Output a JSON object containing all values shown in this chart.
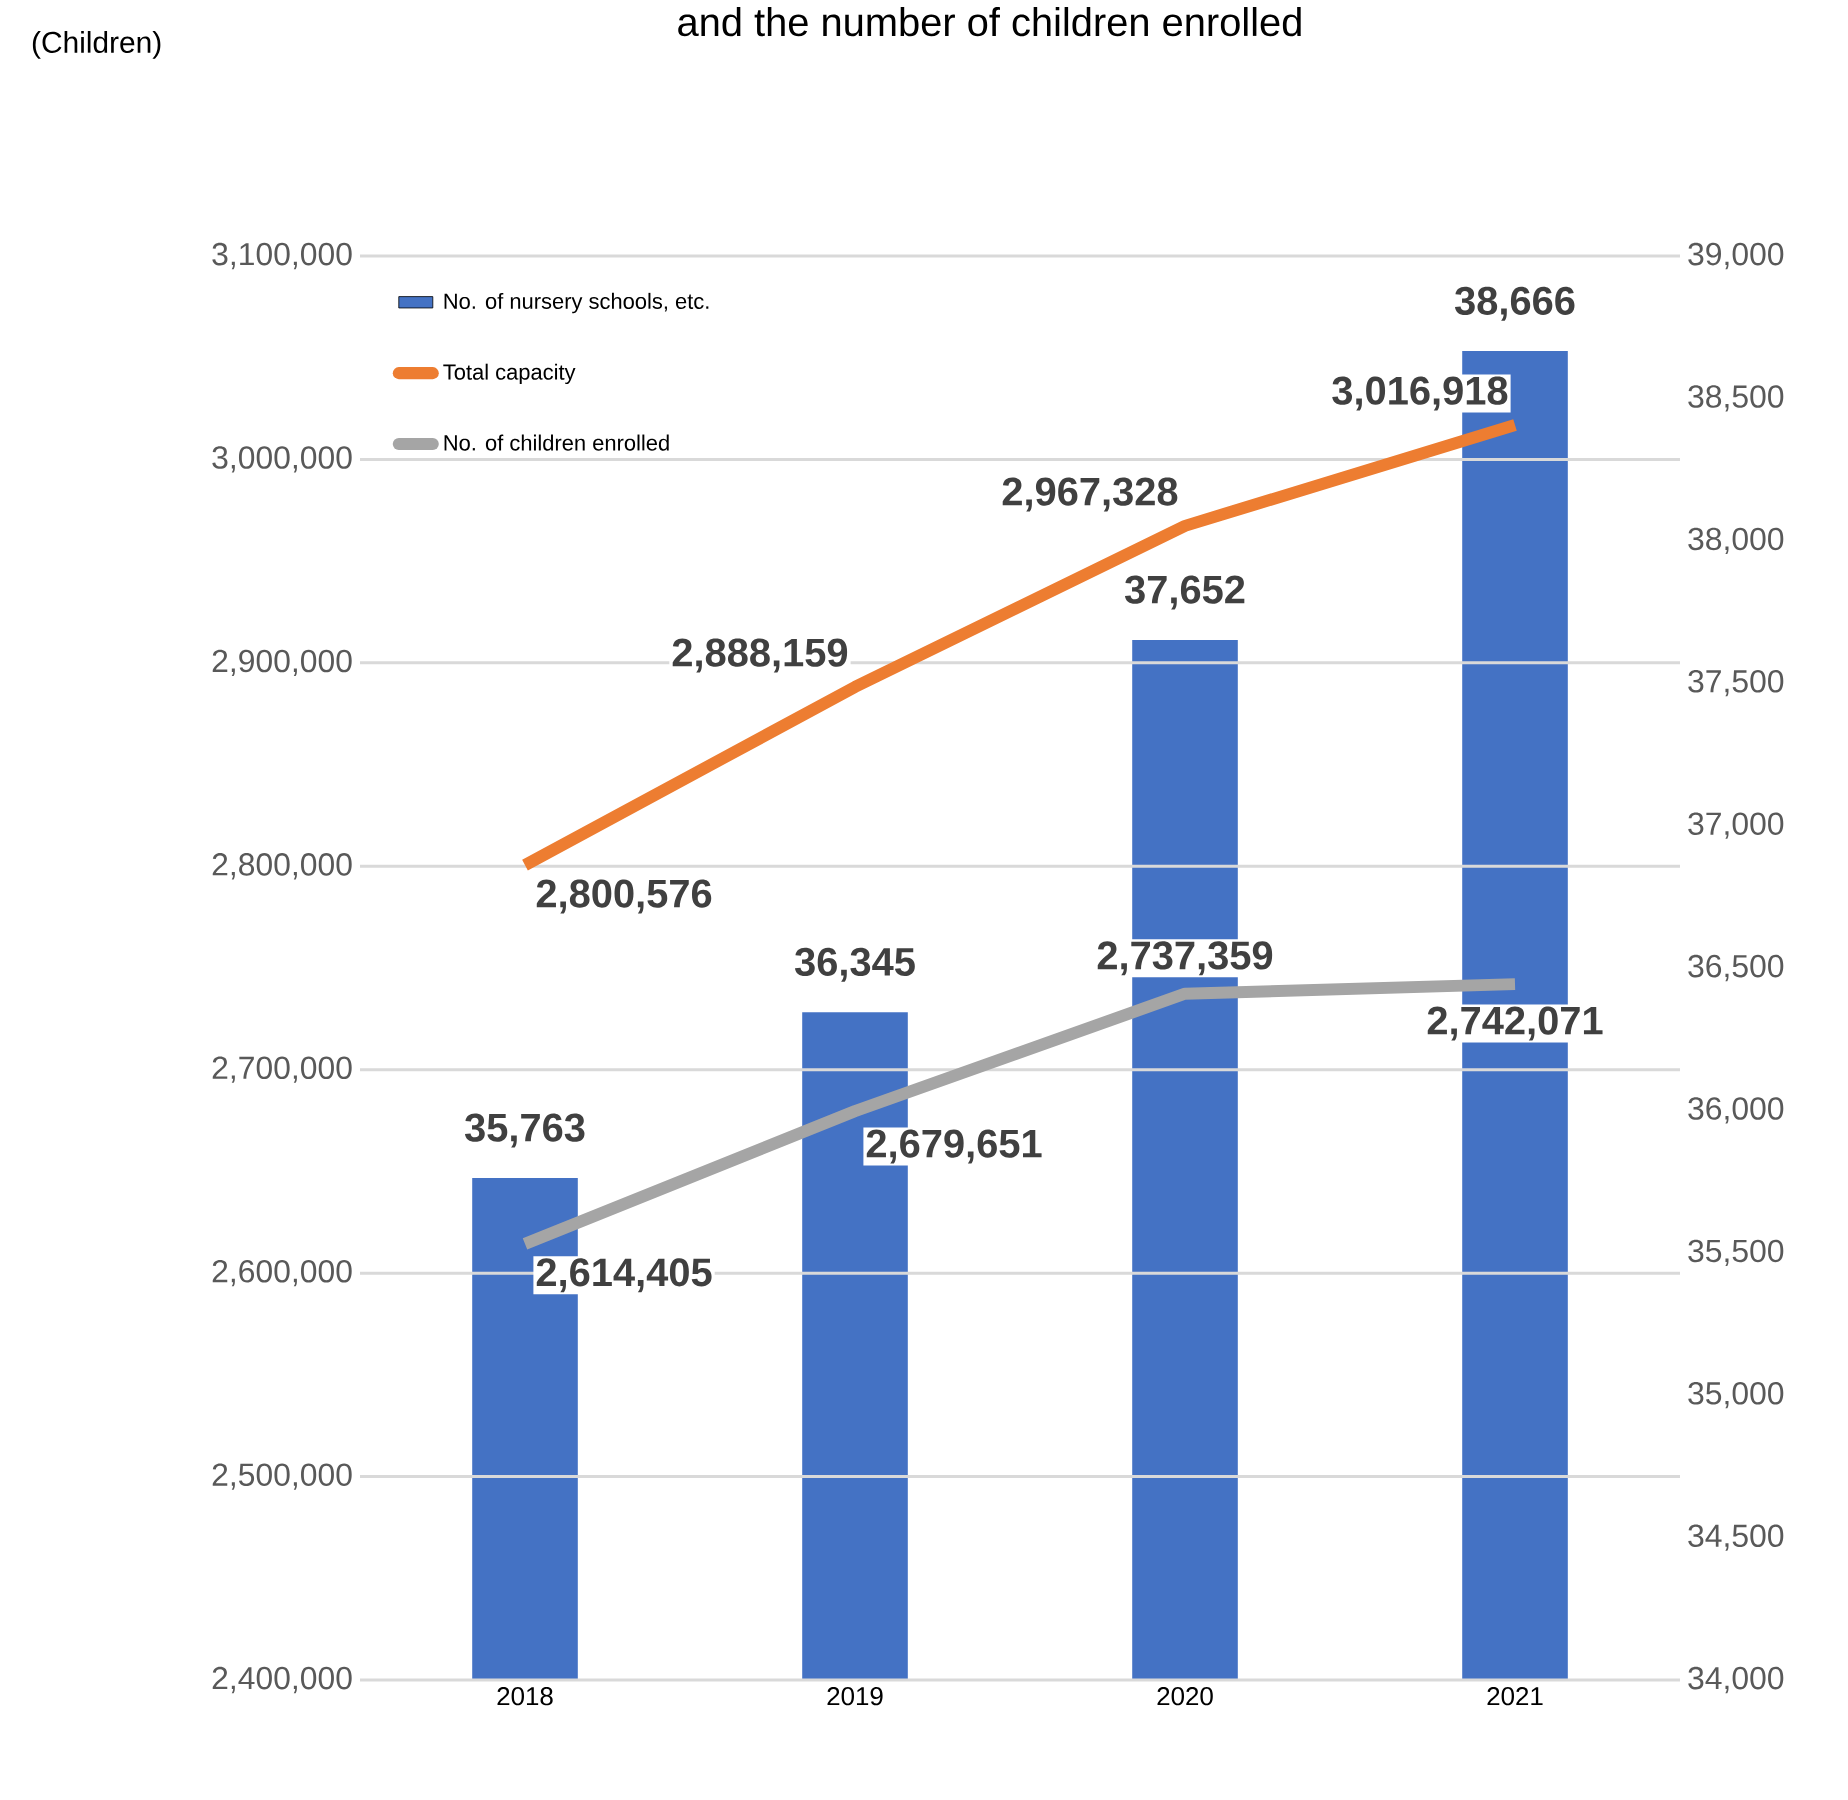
{
  "chart_data": {
    "type": "bar",
    "title": "and the number of children enrolled",
    "annotations": [
      "(Children)"
    ],
    "categories": [
      "2018",
      "2019",
      "2020",
      "2021"
    ],
    "series": [
      {
        "name": "No. of nursery schools, etc.",
        "axis": "y2",
        "color": "#4472c4",
        "values": [
          35763,
          36345,
          37652,
          38666
        ],
        "value_labels": [
          "35,763",
          "36,345",
          "37,652",
          "38,666"
        ]
      },
      {
        "name": "Total capacity",
        "type": "line",
        "color": "#ed7d31",
        "values": [
          2800576,
          2888159,
          2967328,
          3016918
        ],
        "value_labels": [
          "2,800,576",
          "2,888,159",
          "2,967,328",
          "3,016,918"
        ]
      },
      {
        "name": "No. of children enrolled",
        "type": "line",
        "color": "#a5a5a5",
        "values": [
          2614405,
          2679651,
          2737359,
          2742071
        ],
        "value_labels": [
          "2,614,405",
          "2,679,651",
          "2,737,359",
          "2,742,071"
        ]
      }
    ],
    "ylim": [
      2400000,
      3100000
    ],
    "yticks": [
      {
        "value": 2400000,
        "label": "2,400,000"
      },
      {
        "value": 2500000,
        "label": "2,500,000"
      },
      {
        "value": 2600000,
        "label": "2,600,000"
      },
      {
        "value": 2700000,
        "label": "2,700,000"
      },
      {
        "value": 2800000,
        "label": "2,800,000"
      },
      {
        "value": 2900000,
        "label": "2,900,000"
      },
      {
        "value": 3000000,
        "label": "3,000,000"
      },
      {
        "value": 3100000,
        "label": "3,100,000"
      }
    ],
    "y2lim": [
      34000,
      39000
    ],
    "y2ticks": [
      {
        "value": 34000,
        "label": "34,000"
      },
      {
        "value": 34500,
        "label": "34,500"
      },
      {
        "value": 35000,
        "label": "35,000"
      },
      {
        "value": 35500,
        "label": "35,500"
      },
      {
        "value": 36000,
        "label": "36,000"
      },
      {
        "value": 36500,
        "label": "36,500"
      },
      {
        "value": 37000,
        "label": "37,000"
      },
      {
        "value": 37500,
        "label": "37,500"
      },
      {
        "value": 38000,
        "label": "38,000"
      },
      {
        "value": 38500,
        "label": "38,500"
      },
      {
        "value": 39000,
        "label": "39,000"
      }
    ],
    "grid": "y",
    "legend": "top left",
    "marker": "none",
    "line_style": "solid"
  }
}
